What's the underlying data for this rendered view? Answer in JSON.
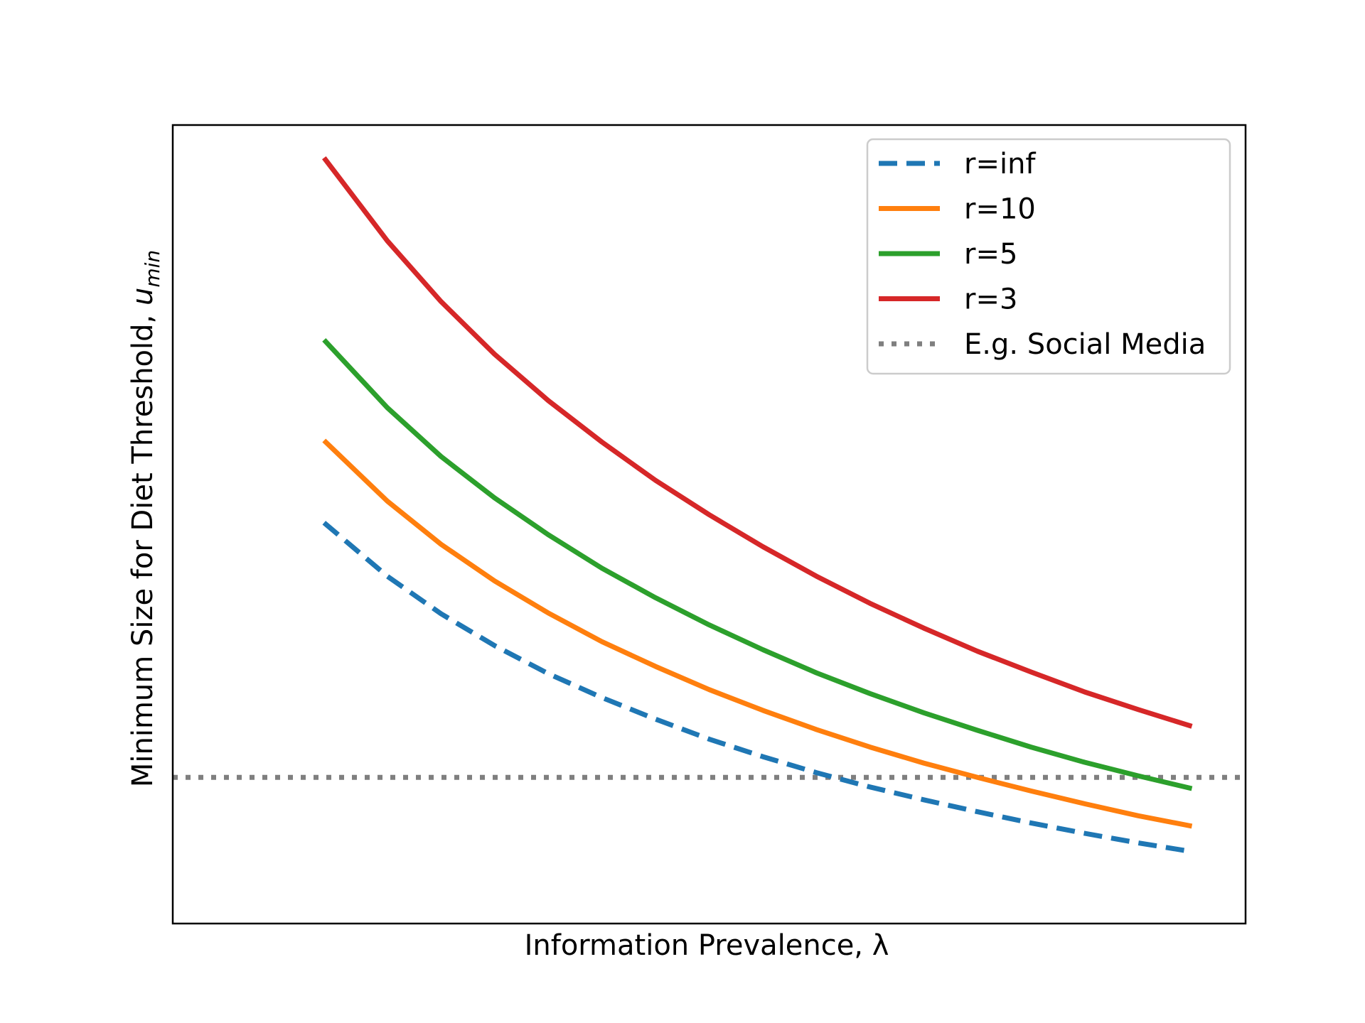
{
  "chart_data": {
    "type": "line",
    "title": "",
    "xlabel": "Information Prevalence, λ",
    "ylabel_main": "Minimum Size for Diet Threshold, ",
    "ylabel_var": "u",
    "ylabel_sub": "min",
    "xlim": [
      0,
      1
    ],
    "ylim": [
      0,
      1
    ],
    "x_ticks_shown": false,
    "y_ticks_shown": false,
    "grid": false,
    "legend_position": "upper right",
    "reference_line": {
      "name": "E.g. Social Media",
      "y": 0.183,
      "color": "#7f7f7f",
      "style": "dotted"
    },
    "series": [
      {
        "name": "r=inf",
        "color": "#1f77b4",
        "style": "dashed",
        "x": [
          0.141,
          0.2,
          0.25,
          0.3,
          0.35,
          0.4,
          0.45,
          0.5,
          0.55,
          0.6,
          0.65,
          0.7,
          0.75,
          0.8,
          0.85,
          0.9,
          0.95,
          0.85
        ],
        "y": [
          0.502,
          0.435,
          0.388,
          0.348,
          0.313,
          0.283,
          0.256,
          0.231,
          0.209,
          0.189,
          0.171,
          0.155,
          0.14,
          0.126,
          0.113,
          0.101,
          0.09,
          0.113
        ]
      },
      {
        "name": "r=10",
        "color": "#ff7f0e",
        "style": "solid",
        "x": [
          0.141,
          0.2,
          0.25,
          0.3,
          0.35,
          0.4,
          0.45,
          0.5,
          0.55,
          0.6,
          0.65,
          0.7,
          0.75,
          0.8,
          0.85,
          0.9,
          0.95,
          0.859
        ],
        "y": [
          0.605,
          0.529,
          0.475,
          0.429,
          0.389,
          0.353,
          0.322,
          0.293,
          0.267,
          0.243,
          0.221,
          0.201,
          0.183,
          0.166,
          0.15,
          0.135,
          0.122,
          0.097
        ]
      },
      {
        "name": "r=5",
        "color": "#2ca02c",
        "style": "solid",
        "x": [
          0.141,
          0.2,
          0.25,
          0.3,
          0.35,
          0.4,
          0.45,
          0.5,
          0.55,
          0.6,
          0.65,
          0.7,
          0.75,
          0.8,
          0.85,
          0.9,
          0.95,
          0.859
        ],
        "y": [
          0.731,
          0.646,
          0.585,
          0.533,
          0.487,
          0.445,
          0.408,
          0.374,
          0.343,
          0.314,
          0.288,
          0.264,
          0.242,
          0.221,
          0.202,
          0.185,
          0.169,
          0.159
        ]
      },
      {
        "name": "r=3",
        "color": "#d62728",
        "style": "solid",
        "x": [
          0.141,
          0.2,
          0.25,
          0.3,
          0.35,
          0.4,
          0.45,
          0.5,
          0.55,
          0.6,
          0.65,
          0.7,
          0.75,
          0.8,
          0.85,
          0.9,
          0.95,
          0.859
        ],
        "y": [
          0.959,
          0.855,
          0.779,
          0.713,
          0.655,
          0.603,
          0.555,
          0.512,
          0.472,
          0.435,
          0.401,
          0.37,
          0.341,
          0.315,
          0.29,
          0.268,
          0.247,
          0.272
        ]
      }
    ]
  }
}
